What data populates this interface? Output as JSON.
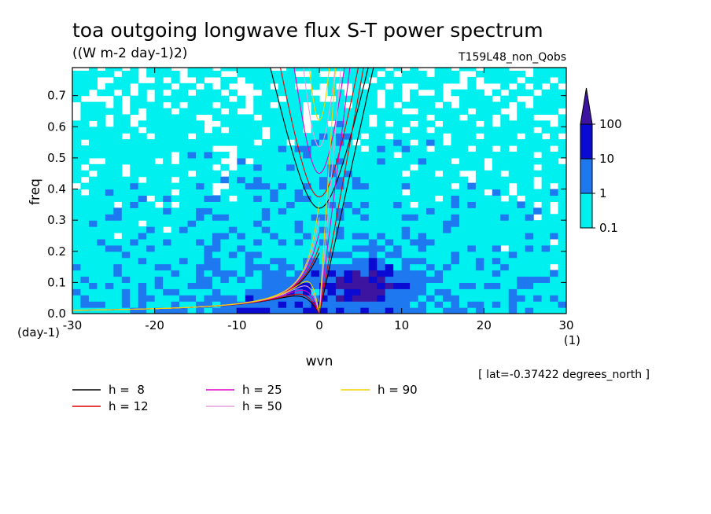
{
  "chart_data": {
    "type": "heatmap",
    "title": "toa outgoing longwave flux S-T power spectrum",
    "subtitle": "((W m-2 day-1)2)",
    "run_label": "T159L48_non_Qobs",
    "xlabel": "wvn",
    "ylabel": "freq",
    "x_unit": "(1)",
    "y_unit": "(day-1)",
    "xlim": [
      -30,
      30
    ],
    "ylim": [
      0,
      0.79
    ],
    "xticks": [
      -30,
      -20,
      -10,
      0,
      10,
      20,
      30
    ],
    "xtick_labels": [
      "-30",
      "-20",
      "-10",
      "0",
      "10",
      "20",
      "30"
    ],
    "yticks": [
      0,
      0.1,
      0.2,
      0.3,
      0.4,
      0.5,
      0.6,
      0.7
    ],
    "ytick_labels": [
      "0.0",
      "0.1",
      "0.2",
      "0.3",
      "0.4",
      "0.5",
      "0.6",
      "0.7"
    ],
    "annotation": "[ lat=-0.37422 degrees_north ]",
    "colorbar": {
      "levels": [
        0.1,
        1,
        10,
        100
      ],
      "labels": [
        "0.1",
        "1",
        "10",
        "100"
      ],
      "colors": [
        "#00f0f0",
        "#1e78f0",
        "#0a0ad2",
        "#3c14a0"
      ],
      "extend": "max"
    },
    "dispersion_curves": [
      {
        "label": "h =  8",
        "h": 8,
        "color": "#000000"
      },
      {
        "label": "h = 12",
        "h": 12,
        "color": "#e00000"
      },
      {
        "label": "h = 25",
        "h": 25,
        "color": "#e000c8"
      },
      {
        "label": "h = 50",
        "h": 50,
        "color": "#e0a0e0"
      },
      {
        "label": "h = 90",
        "h": 90,
        "color": "#f0d200"
      }
    ],
    "grid": false,
    "legend_placement": "bottom"
  }
}
